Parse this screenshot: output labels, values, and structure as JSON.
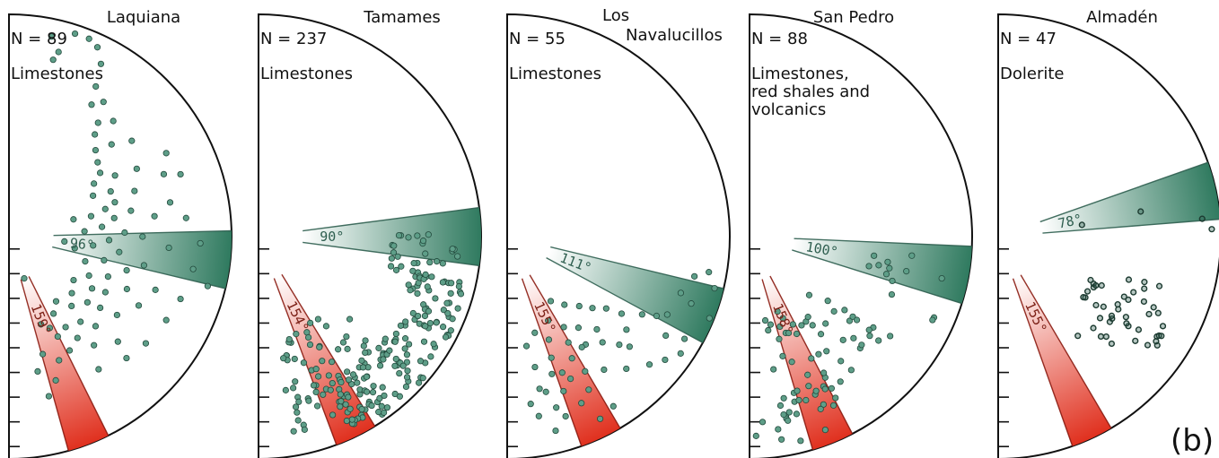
{
  "figure_label": "(b)",
  "colors": {
    "green_wedge": "#2f7a5f",
    "red_wedge": "#e0301e",
    "points": "#5e9e88",
    "points_dark": "#2f5f4f",
    "green_label": "#2e5e4f",
    "red_label": "#7a1e14"
  },
  "chart_data": [
    {
      "type": "scatter",
      "site": "Laquiana",
      "n_label": "N = 89",
      "lithology": [
        "Limestones"
      ],
      "green_wedge": {
        "angle": 96,
        "label": "96°"
      },
      "red_wedge": {
        "angle": 159,
        "label": "159°"
      },
      "points": [
        [
          15,
          0.86
        ],
        [
          14,
          0.82
        ],
        [
          12,
          0.92
        ],
        [
          18,
          0.96
        ],
        [
          22,
          0.96
        ],
        [
          25,
          0.94
        ],
        [
          28,
          0.88
        ],
        [
          30,
          0.78
        ],
        [
          32,
          0.7
        ],
        [
          35,
          0.74
        ],
        [
          38,
          0.65
        ],
        [
          40,
          0.6
        ],
        [
          42,
          0.7
        ],
        [
          45,
          0.55
        ],
        [
          48,
          0.62
        ],
        [
          50,
          0.52
        ],
        [
          52,
          0.7
        ],
        [
          55,
          0.5
        ],
        [
          58,
          0.45
        ],
        [
          60,
          0.55
        ],
        [
          62,
          0.65
        ],
        [
          64,
          0.42
        ],
        [
          66,
          0.5
        ],
        [
          68,
          0.75
        ],
        [
          70,
          0.6
        ],
        [
          72,
          0.5
        ],
        [
          74,
          0.45
        ],
        [
          76,
          0.38
        ],
        [
          78,
          0.56
        ],
        [
          80,
          0.48
        ],
        [
          82,
          0.66
        ],
        [
          84,
          0.42
        ],
        [
          86,
          0.34
        ],
        [
          88,
          0.52
        ],
        [
          90,
          0.6
        ],
        [
          92,
          0.45
        ],
        [
          94,
          0.72
        ],
        [
          96,
          0.38
        ],
        [
          98,
          0.5
        ],
        [
          100,
          0.3
        ],
        [
          102,
          0.62
        ],
        [
          104,
          0.44
        ],
        [
          106,
          0.55
        ],
        [
          108,
          0.36
        ],
        [
          110,
          0.7
        ],
        [
          112,
          0.48
        ],
        [
          114,
          0.58
        ],
        [
          116,
          0.4
        ],
        [
          118,
          0.66
        ],
        [
          120,
          0.5
        ],
        [
          122,
          0.44
        ],
        [
          124,
          0.35
        ],
        [
          126,
          0.6
        ],
        [
          128,
          0.52
        ],
        [
          130,
          0.46
        ],
        [
          132,
          0.38
        ],
        [
          134,
          0.68
        ],
        [
          136,
          0.56
        ],
        [
          138,
          0.42
        ],
        [
          140,
          0.5
        ],
        [
          142,
          0.62
        ],
        [
          144,
          0.36
        ],
        [
          146,
          0.55
        ],
        [
          148,
          0.48
        ],
        [
          150,
          0.4
        ],
        [
          152,
          0.58
        ],
        [
          154,
          0.5
        ],
        [
          156,
          0.45
        ],
        [
          158,
          0.6
        ],
        [
          160,
          0.42
        ],
        [
          162,
          0.68
        ],
        [
          164,
          0.55
        ],
        [
          166,
          0.74
        ],
        [
          168,
          0.62
        ],
        [
          62,
          0.8
        ],
        [
          70,
          0.82
        ],
        [
          78,
          0.74
        ],
        [
          84,
          0.8
        ],
        [
          92,
          0.86
        ],
        [
          100,
          0.84
        ],
        [
          110,
          0.82
        ],
        [
          118,
          0.8
        ],
        [
          128,
          0.78
        ],
        [
          136,
          0.76
        ],
        [
          146,
          0.72
        ],
        [
          75,
          0.3
        ],
        [
          95,
          0.25
        ],
        [
          160,
          0.2
        ],
        [
          104,
          0.92
        ]
      ]
    },
    {
      "type": "scatter",
      "site": "Tamames",
      "n_label": "N = 237",
      "lithology": [
        "Limestones"
      ],
      "green_wedge": {
        "angle": 90,
        "label": "90°"
      },
      "red_wedge": {
        "angle": 154,
        "label": "154°"
      },
      "points": "generated-dense"
    },
    {
      "type": "scatter",
      "site": "Los Navalucillos",
      "n_label": "N = 55",
      "lithology": [
        "Limestones"
      ],
      "green_wedge": {
        "angle": 111,
        "label": "111°"
      },
      "red_wedge": {
        "angle": 155,
        "label": "155°"
      },
      "points": [
        [
          100,
          0.92
        ],
        [
          102,
          0.86
        ],
        [
          104,
          0.96
        ],
        [
          108,
          0.82
        ],
        [
          110,
          0.88
        ],
        [
          112,
          0.98
        ],
        [
          116,
          0.8
        ],
        [
          118,
          0.76
        ],
        [
          120,
          0.7
        ],
        [
          122,
          0.84
        ],
        [
          124,
          0.62
        ],
        [
          126,
          0.55
        ],
        [
          128,
          0.68
        ],
        [
          130,
          0.5
        ],
        [
          132,
          0.74
        ],
        [
          134,
          0.45
        ],
        [
          136,
          0.58
        ],
        [
          138,
          0.64
        ],
        [
          140,
          0.4
        ],
        [
          142,
          0.52
        ],
        [
          144,
          0.6
        ],
        [
          146,
          0.35
        ],
        [
          148,
          0.48
        ],
        [
          150,
          0.55
        ],
        [
          152,
          0.62
        ],
        [
          154,
          0.42
        ],
        [
          156,
          0.7
        ],
        [
          158,
          0.5
        ],
        [
          160,
          0.58
        ],
        [
          162,
          0.65
        ],
        [
          164,
          0.45
        ],
        [
          166,
          0.72
        ],
        [
          168,
          0.6
        ],
        [
          170,
          0.5
        ],
        [
          150,
          0.7
        ],
        [
          152,
          0.78
        ],
        [
          156,
          0.82
        ],
        [
          158,
          0.66
        ],
        [
          160,
          0.74
        ],
        [
          162,
          0.85
        ],
        [
          164,
          0.8
        ],
        [
          166,
          0.9
        ],
        [
          168,
          0.7
        ],
        [
          170,
          0.82
        ],
        [
          172,
          0.76
        ],
        [
          148,
          0.9
        ],
        [
          153,
          0.92
        ],
        [
          146,
          0.6
        ],
        [
          144,
          0.74
        ],
        [
          138,
          0.8
        ],
        [
          132,
          0.86
        ],
        [
          128,
          0.9
        ],
        [
          124,
          0.94
        ],
        [
          120,
          0.92
        ],
        [
          134,
          0.7
        ]
      ]
    },
    {
      "type": "scatter",
      "site": "San Pedro",
      "n_label": "N = 88",
      "lithology": [
        "Limestones,",
        "red shales and",
        "volcanics"
      ],
      "green_wedge": {
        "angle": 100,
        "label": "100°"
      },
      "red_wedge": {
        "angle": 158,
        "label": "158°"
      },
      "points": "generated-medium"
    },
    {
      "type": "scatter",
      "site": "Almadén",
      "n_label": "N = 47",
      "lithology": [
        "Dolerite"
      ],
      "green_wedge": {
        "angle": 78,
        "label": "78°"
      },
      "red_wedge": {
        "angle": 155,
        "label": "155°"
      },
      "points": "generated-cluster"
    }
  ]
}
